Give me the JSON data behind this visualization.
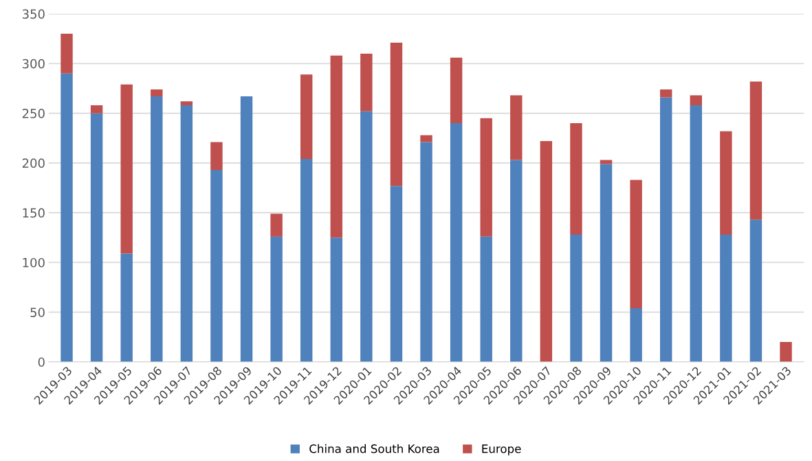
{
  "chart_data": {
    "type": "bar",
    "stacked": true,
    "categories": [
      "2019-03",
      "2019-04",
      "2019-05",
      "2019-06",
      "2019-07",
      "2019-08",
      "2019-09",
      "2019-10",
      "2019-11",
      "2019-12",
      "2020-01",
      "2020-02",
      "2020-03",
      "2020-04",
      "2020-05",
      "2020-06",
      "2020-07",
      "2020-08",
      "2020-09",
      "2020-10",
      "2020-11",
      "2020-12",
      "2021-01",
      "2021-02",
      "2021-03"
    ],
    "series": [
      {
        "name": "China and South Korea",
        "color": "#4f81bd",
        "values": [
          290,
          250,
          109,
          267,
          258,
          193,
          267,
          126,
          204,
          125,
          252,
          177,
          221,
          240,
          126,
          203,
          0,
          128,
          199,
          54,
          266,
          258,
          128,
          143,
          0
        ]
      },
      {
        "name": "Europe",
        "color": "#c0504d",
        "values": [
          40,
          8,
          170,
          7,
          4,
          28,
          0,
          23,
          85,
          183,
          58,
          144,
          7,
          66,
          119,
          65,
          222,
          112,
          4,
          129,
          8,
          10,
          104,
          139,
          20
        ]
      }
    ],
    "ylim": [
      0,
      350
    ],
    "yticks": [
      0,
      50,
      100,
      150,
      200,
      250,
      300,
      350
    ],
    "grid": "y",
    "legend": "bottom"
  }
}
